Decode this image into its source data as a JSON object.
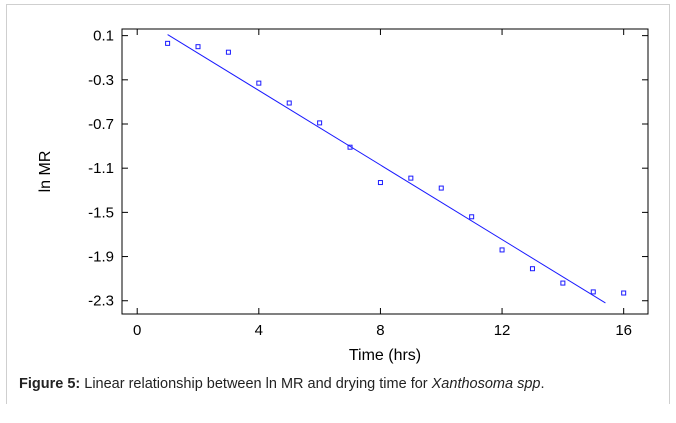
{
  "chart_data": {
    "type": "scatter",
    "xlabel": "Time (hrs)",
    "ylabel": "ln MR",
    "xlim": [
      -0.5,
      16.8
    ],
    "ylim": [
      -2.42,
      0.16
    ],
    "xticks": [
      0,
      4,
      8,
      12,
      16
    ],
    "yticks": [
      0.1,
      -0.3,
      -0.7,
      -1.1,
      -1.5,
      -1.9,
      -2.3
    ],
    "ytick_labels": [
      "0.1",
      "-0.3",
      "-0.7",
      "-1.1",
      "-1.5",
      "-1.9",
      "-2.3"
    ],
    "xtick_labels": [
      "0",
      "4",
      "8",
      "12",
      "16"
    ],
    "grid": false,
    "marker_color": "#1a1aff",
    "series": [
      {
        "x": [
          1,
          2,
          3,
          4,
          5,
          6,
          7,
          8,
          9,
          10,
          11,
          12,
          13,
          14,
          15,
          16
        ],
        "y": [
          0.03,
          0.0,
          -0.05,
          -0.33,
          -0.51,
          -0.69,
          -0.91,
          -1.23,
          -1.19,
          -1.28,
          -1.54,
          -1.84,
          -2.01,
          -2.14,
          -2.22,
          -2.23
        ]
      }
    ],
    "fit_line": {
      "x": [
        1,
        15.4
      ],
      "y": [
        0.11,
        -2.32
      ],
      "color": "#1a1aff"
    }
  },
  "caption": {
    "label": "Figure 5:",
    "text": " Linear relationship between ln MR and drying time for ",
    "species": "Xanthosoma spp",
    "end": "."
  }
}
